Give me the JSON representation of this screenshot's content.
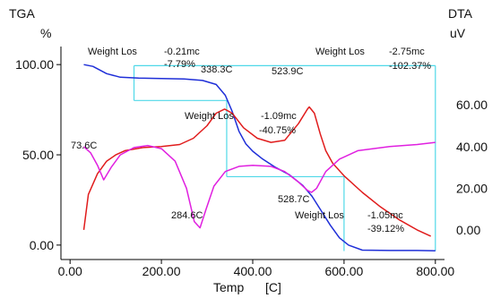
{
  "chart_data": {
    "type": "line",
    "title": "",
    "xlabel": "Temp",
    "xlabel_unit": "[C]",
    "xlim": [
      -20,
      820
    ],
    "x_ticks": [
      "0.00",
      "200.00",
      "400.00",
      "600.00",
      "800.00"
    ],
    "y_left": {
      "label_line1": "TGA",
      "label_line2": "%",
      "ylim": [
        -8,
        110
      ],
      "ticks": [
        "0.00",
        "50.00",
        "100.00"
      ]
    },
    "y_right": {
      "label_line1": "DTA",
      "label_line2": "uV",
      "ticks": [
        "0.00",
        "20.00",
        "40.00",
        "60.00"
      ],
      "ylim": [
        -14.2,
        88
      ]
    },
    "grid": false,
    "legend": "none",
    "series": [
      {
        "axis": "left",
        "color": "#1f2fd8",
        "points": [
          [
            30,
            100
          ],
          [
            50,
            99
          ],
          [
            80,
            95
          ],
          [
            110,
            93
          ],
          [
            150,
            92.5
          ],
          [
            200,
            92.3
          ],
          [
            250,
            92
          ],
          [
            290,
            91.2
          ],
          [
            320,
            89
          ],
          [
            340,
            83
          ],
          [
            355,
            74
          ],
          [
            370,
            63
          ],
          [
            385,
            56
          ],
          [
            400,
            52
          ],
          [
            420,
            48
          ],
          [
            450,
            43
          ],
          [
            480,
            39
          ],
          [
            510,
            33
          ],
          [
            530,
            27
          ],
          [
            550,
            19
          ],
          [
            570,
            11
          ],
          [
            590,
            4
          ],
          [
            610,
            0
          ],
          [
            640,
            -2.8
          ],
          [
            700,
            -3
          ],
          [
            760,
            -3
          ],
          [
            800,
            -3.2
          ]
        ]
      },
      {
        "axis": "right",
        "color": "#e01c1c",
        "points": [
          [
            30,
            0
          ],
          [
            40,
            17
          ],
          [
            60,
            27
          ],
          [
            80,
            33
          ],
          [
            100,
            36
          ],
          [
            120,
            38
          ],
          [
            160,
            39.5
          ],
          [
            200,
            40
          ],
          [
            240,
            41
          ],
          [
            270,
            44
          ],
          [
            300,
            50
          ],
          [
            320,
            56
          ],
          [
            338.3,
            58
          ],
          [
            355,
            56
          ],
          [
            380,
            49
          ],
          [
            410,
            44
          ],
          [
            440,
            42
          ],
          [
            470,
            43
          ],
          [
            500,
            51
          ],
          [
            520,
            58
          ],
          [
            523.9,
            59
          ],
          [
            535,
            56
          ],
          [
            548,
            46
          ],
          [
            560,
            38
          ],
          [
            575,
            32
          ],
          [
            600,
            26
          ],
          [
            640,
            18
          ],
          [
            680,
            11
          ],
          [
            720,
            5
          ],
          [
            760,
            0
          ],
          [
            790,
            -3
          ]
        ]
      },
      {
        "axis": "right",
        "color": "#e020e0",
        "points": [
          [
            30,
            40
          ],
          [
            45,
            37
          ],
          [
            60,
            31
          ],
          [
            73.6,
            24
          ],
          [
            90,
            30
          ],
          [
            110,
            36
          ],
          [
            140,
            39.5
          ],
          [
            170,
            40.5
          ],
          [
            200,
            39
          ],
          [
            230,
            33
          ],
          [
            255,
            20
          ],
          [
            272,
            4
          ],
          [
            284.6,
            1
          ],
          [
            298,
            10
          ],
          [
            315,
            21
          ],
          [
            340,
            28
          ],
          [
            370,
            30.5
          ],
          [
            400,
            31
          ],
          [
            440,
            30.5
          ],
          [
            470,
            28
          ],
          [
            500,
            23
          ],
          [
            520,
            19
          ],
          [
            528.7,
            18
          ],
          [
            540,
            20
          ],
          [
            560,
            28
          ],
          [
            590,
            34
          ],
          [
            630,
            38
          ],
          [
            700,
            40
          ],
          [
            760,
            41
          ],
          [
            800,
            42
          ]
        ]
      }
    ],
    "annotations": [
      {
        "lines": [
          "Weight Los",
          "-0.21mc",
          "-7.79%"
        ]
      },
      {
        "lines": [
          "Weight Los",
          "-1.09mc",
          "-40.75%"
        ]
      },
      {
        "lines": [
          "Weight Los",
          "-1.05mc",
          "-39.12%"
        ]
      },
      {
        "lines": [
          "Weight Los",
          "-2.75mc",
          "-102.37%"
        ]
      }
    ],
    "peak_labels": [
      "338.3C",
      "523.9C",
      "73.6C",
      "284.6C",
      "528.7C"
    ],
    "step_lines": {
      "color": "#4fd8e8",
      "temps": [
        140,
        343,
        600
      ],
      "end_temp": 800,
      "levels": [
        99.4,
        80.1,
        37.9,
        -3.3
      ]
    }
  }
}
